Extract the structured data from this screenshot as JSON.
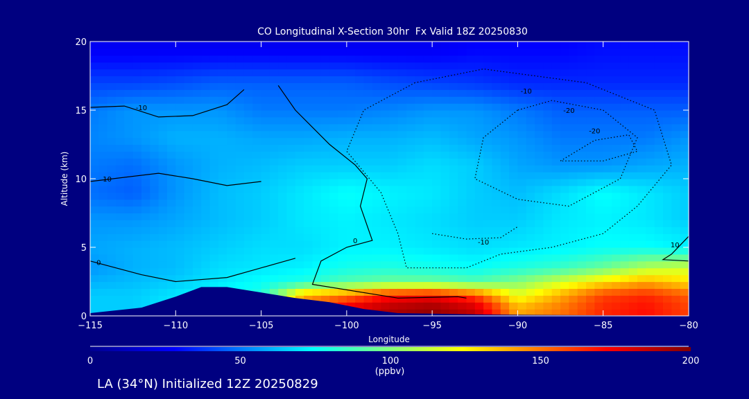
{
  "chart_data": {
    "type": "heatmap",
    "title": "CO Longitudinal X-Section 30hr  Fx Valid 18Z 20250830",
    "xlabel": "Longitude",
    "ylabel": "Altitude (km)",
    "xlim": [
      -115,
      -80
    ],
    "ylim": [
      0,
      20
    ],
    "xticks": [
      -115,
      -110,
      -105,
      -100,
      -95,
      -90,
      -85,
      -80
    ],
    "xtick_labels": [
      "−115",
      "−110",
      "−105",
      "−100",
      "−95",
      "−90",
      "−85",
      "−80"
    ],
    "yticks": [
      0,
      5,
      10,
      15,
      20
    ],
    "ytick_labels": [
      "0",
      "5",
      "10",
      "15",
      "20"
    ],
    "colorbar": {
      "min": 0,
      "max": 200,
      "ticks": [
        0,
        50,
        100,
        150,
        200
      ],
      "tick_labels": [
        "0",
        "50",
        "100",
        "150",
        "200"
      ],
      "units": "(ppbv)"
    },
    "lon": [
      -115,
      -112.5,
      -110,
      -107.5,
      -105,
      -102.5,
      -100,
      -97.5,
      -95,
      -92.5,
      -90,
      -87.5,
      -85,
      -82.5,
      -80
    ],
    "alt": [
      0.5,
      1.5,
      2.5,
      3.5,
      5,
      7,
      9,
      11,
      13,
      15,
      17,
      19.5
    ],
    "co_ppbv": [
      [
        65,
        65,
        70,
        75,
        80,
        150,
        180,
        190,
        195,
        185,
        140,
        150,
        165,
        170,
        160
      ],
      [
        65,
        65,
        70,
        75,
        80,
        140,
        150,
        170,
        175,
        160,
        120,
        140,
        160,
        165,
        155
      ],
      [
        60,
        62,
        65,
        70,
        75,
        80,
        90,
        95,
        95,
        90,
        100,
        115,
        130,
        140,
        130
      ],
      [
        55,
        60,
        62,
        68,
        70,
        72,
        78,
        80,
        78,
        75,
        80,
        85,
        95,
        110,
        115
      ],
      [
        58,
        60,
        62,
        65,
        68,
        68,
        72,
        72,
        70,
        68,
        70,
        72,
        75,
        75,
        72
      ],
      [
        55,
        55,
        58,
        62,
        65,
        70,
        72,
        70,
        68,
        65,
        65,
        70,
        72,
        70,
        65
      ],
      [
        48,
        45,
        55,
        62,
        65,
        70,
        75,
        72,
        70,
        65,
        62,
        68,
        75,
        70,
        65
      ],
      [
        50,
        48,
        55,
        60,
        62,
        65,
        65,
        65,
        68,
        65,
        58,
        55,
        55,
        58,
        60
      ],
      [
        52,
        55,
        60,
        60,
        58,
        58,
        60,
        60,
        62,
        58,
        55,
        50,
        50,
        50,
        55
      ],
      [
        50,
        55,
        55,
        55,
        50,
        50,
        50,
        52,
        55,
        55,
        50,
        45,
        45,
        45,
        45
      ],
      [
        40,
        40,
        42,
        45,
        45,
        45,
        45,
        42,
        40,
        38,
        35,
        35,
        35,
        35,
        35
      ],
      [
        25,
        25,
        25,
        25,
        25,
        25,
        25,
        25,
        25,
        28,
        28,
        28,
        30,
        30,
        30
      ]
    ],
    "terrain": [
      [
        -115,
        0.2
      ],
      [
        -112,
        0.6
      ],
      [
        -110,
        1.4
      ],
      [
        -108.5,
        2.1
      ],
      [
        -107,
        2.1
      ],
      [
        -105,
        1.7
      ],
      [
        -103,
        1.3
      ],
      [
        -101,
        1.0
      ],
      [
        -99,
        0.5
      ],
      [
        -97,
        0.2
      ],
      [
        -92,
        0.1
      ],
      [
        -80,
        0
      ]
    ],
    "contours": [
      {
        "level": "0",
        "style": "solid",
        "points": [
          [
            -104,
            16.8
          ],
          [
            -103,
            15
          ],
          [
            -101,
            12.5
          ],
          [
            -99.5,
            11
          ],
          [
            -98.8,
            10
          ],
          [
            -99.2,
            8
          ],
          [
            -98.5,
            5.5
          ],
          [
            -100,
            5
          ],
          [
            -101.5,
            4
          ],
          [
            -102,
            2.3
          ],
          [
            -97,
            1.3
          ],
          [
            -93.5,
            1.4
          ],
          [
            -93,
            1.3
          ]
        ],
        "label_at": [
          -99.5,
          5.3
        ]
      },
      {
        "level": "10",
        "style": "solid",
        "points": [
          [
            -115,
            9.8
          ],
          [
            -113,
            10.1
          ],
          [
            -111,
            10.4
          ],
          [
            -109,
            10
          ],
          [
            -107,
            9.5
          ],
          [
            -105,
            9.8
          ]
        ],
        "label_at": [
          -114,
          9.8
        ]
      },
      {
        "level": "-10",
        "style": "solid",
        "points": [
          [
            -115,
            15.2
          ],
          [
            -113,
            15.3
          ],
          [
            -111,
            14.5
          ],
          [
            -109,
            14.6
          ],
          [
            -107,
            15.4
          ],
          [
            -106,
            16.5
          ]
        ],
        "label_at": [
          -112,
          15
        ]
      },
      {
        "level": "0",
        "style": "solid",
        "points": [
          [
            -115,
            4
          ],
          [
            -112,
            3
          ],
          [
            -110,
            2.5
          ],
          [
            -107,
            2.8
          ],
          [
            -105,
            3.5
          ],
          [
            -103,
            4.2
          ]
        ],
        "label_at": [
          -114.5,
          3.7
        ]
      },
      {
        "level": "-10",
        "style": "dotted",
        "points": [
          [
            -96,
            17
          ],
          [
            -99,
            15
          ],
          [
            -100,
            12
          ],
          [
            -98,
            9
          ],
          [
            -97,
            6
          ],
          [
            -96.5,
            3.5
          ],
          [
            -93,
            3.5
          ],
          [
            -91,
            4.5
          ],
          [
            -88,
            5
          ],
          [
            -85,
            6
          ],
          [
            -83,
            8
          ],
          [
            -81,
            11
          ],
          [
            -82,
            15
          ],
          [
            -86,
            17
          ],
          [
            -92,
            18
          ],
          [
            -96,
            17
          ]
        ],
        "label_at": [
          -89.5,
          16.2
        ]
      },
      {
        "level": "-20",
        "style": "dotted",
        "points": [
          [
            -90,
            15
          ],
          [
            -92,
            13
          ],
          [
            -92.5,
            10
          ],
          [
            -90,
            8.5
          ],
          [
            -87,
            8
          ],
          [
            -84,
            10
          ],
          [
            -83,
            13
          ],
          [
            -85,
            15
          ],
          [
            -88,
            15.7
          ],
          [
            -90,
            15
          ]
        ],
        "label_at": [
          -87,
          14.8
        ]
      },
      {
        "level": "-20",
        "style": "dotted",
        "points": [
          [
            -87.5,
            11.3
          ],
          [
            -85.5,
            12.8
          ],
          [
            -83.5,
            13.2
          ],
          [
            -83,
            12
          ],
          [
            -85,
            11.3
          ],
          [
            -87.5,
            11.3
          ]
        ],
        "label_at": [
          -85.5,
          13.3
        ]
      },
      {
        "level": "10",
        "style": "solid",
        "points": [
          [
            -80,
            5.8
          ],
          [
            -81,
            4.5
          ],
          [
            -81.5,
            4.1
          ],
          [
            -80,
            4
          ]
        ],
        "label_at": [
          -80.8,
          5
        ]
      },
      {
        "level": "-10",
        "style": "dotted",
        "points": [
          [
            -95,
            6
          ],
          [
            -93,
            5.6
          ],
          [
            -91,
            5.7
          ],
          [
            -90,
            6.5
          ]
        ],
        "label_at": [
          -92,
          5.2
        ]
      }
    ]
  },
  "footer": "LA (34°N) Initialized 12Z 20250829"
}
